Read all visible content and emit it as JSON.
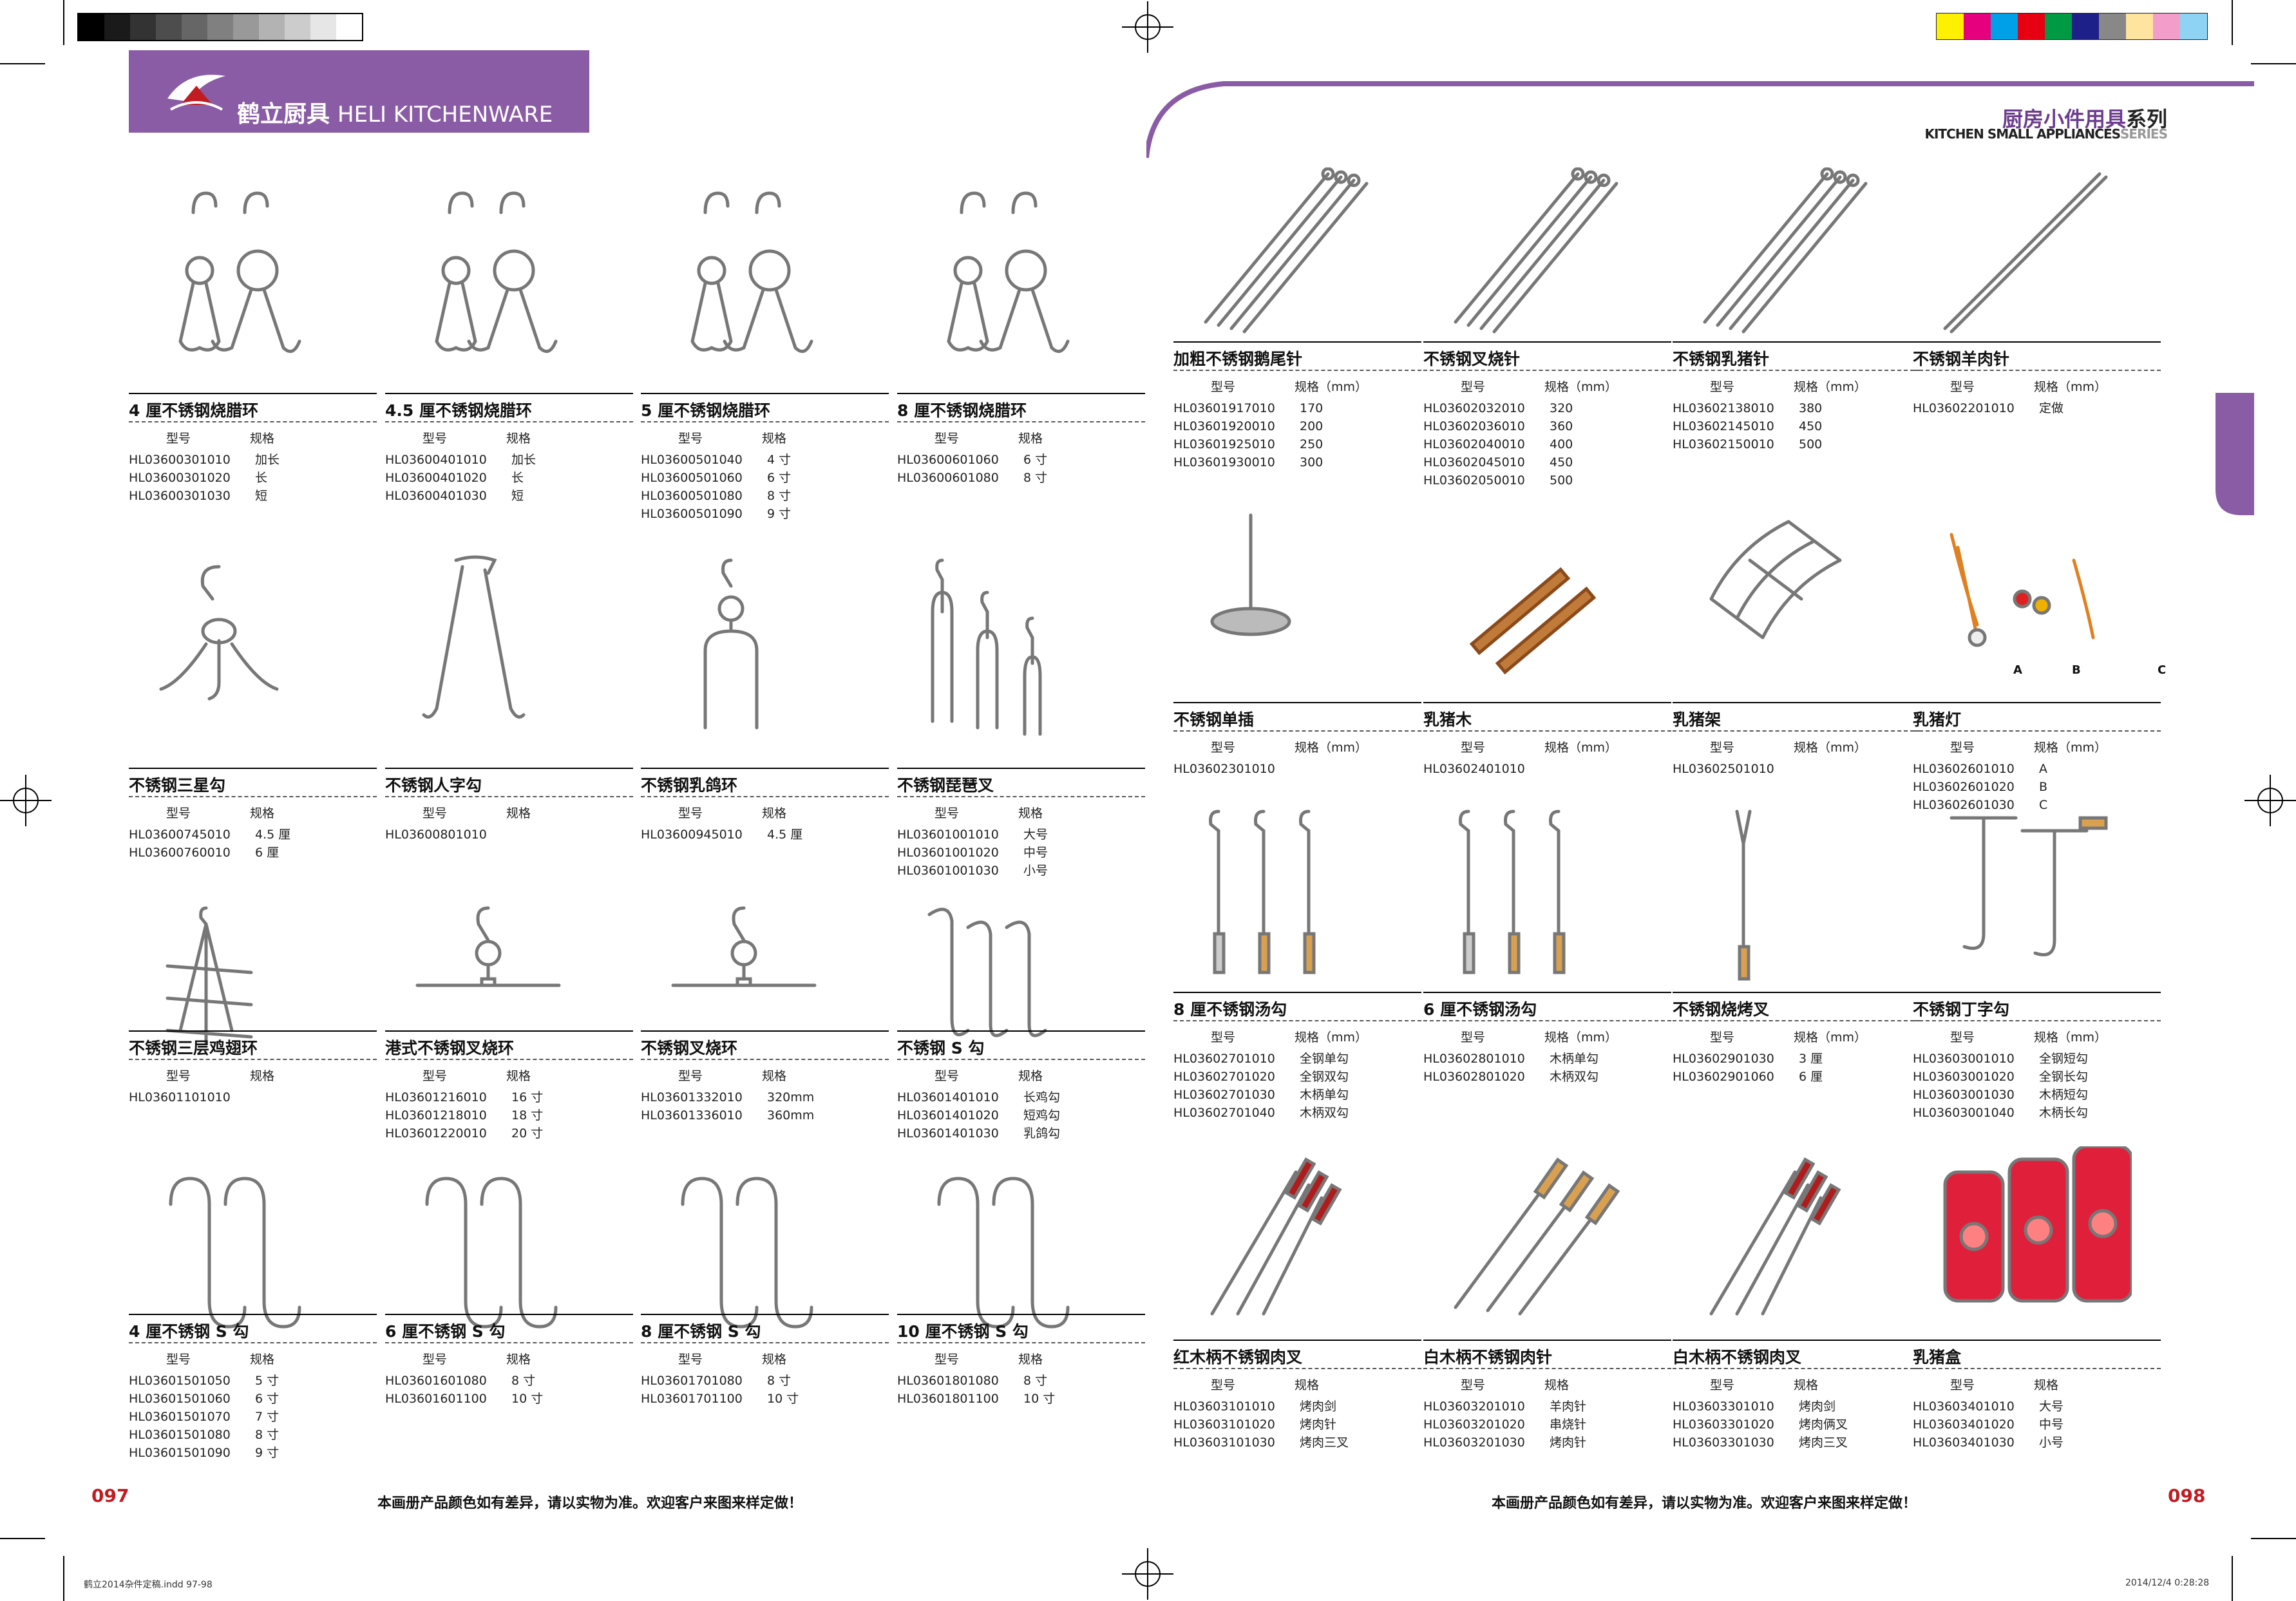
{
  "brand": {
    "name_cn": "鹤立厨具",
    "name_en": "HELI KITCHENWARE"
  },
  "series": {
    "title_cn_main": "厨房小件用具",
    "title_cn_suffix": "系列",
    "title_en_main": "KITCHEN SMALL APPLIANCES",
    "title_en_suffix": "SERIES"
  },
  "colors": {
    "accent": "#8a5ca6",
    "page_number": "#c01c22"
  },
  "table_headers": {
    "model": "型号",
    "spec": "规格",
    "spec_mm": "规格（mm）"
  },
  "pages": {
    "left_number": "097",
    "right_number": "098"
  },
  "notice": "本画册产品颜色如有差异，请以实物为准。欢迎客户来图来样定做！",
  "footer": {
    "file": "鹤立2014杂件定稿.indd 97-98",
    "timestamp": "2014/12/4 0:28:28"
  },
  "lamp_labels": [
    "A",
    "B",
    "C"
  ],
  "left_products": [
    {
      "name": "4 厘不锈钢烧腊环",
      "icon": "double-hook-ring-icon",
      "rows": [
        [
          "HL03600301010",
          "加长"
        ],
        [
          "HL03600301020",
          "长"
        ],
        [
          "HL03600301030",
          "短"
        ]
      ]
    },
    {
      "name": "4.5 厘不锈钢烧腊环",
      "icon": "double-hook-ring-icon",
      "rows": [
        [
          "HL03600401010",
          "加长"
        ],
        [
          "HL03600401020",
          "长"
        ],
        [
          "HL03600401030",
          "短"
        ]
      ]
    },
    {
      "name": "5 厘不锈钢烧腊环",
      "icon": "double-hook-ring-icon",
      "rows": [
        [
          "HL03600501040",
          "4 寸"
        ],
        [
          "HL03600501060",
          "6 寸"
        ],
        [
          "HL03600501080",
          "8 寸"
        ],
        [
          "HL03600501090",
          "9 寸"
        ]
      ]
    },
    {
      "name": "8 厘不锈钢烧腊环",
      "icon": "double-hook-ring-icon",
      "rows": [
        [
          "HL03600601060",
          "6 寸"
        ],
        [
          "HL03600601080",
          "8 寸"
        ]
      ]
    },
    {
      "name": "不锈钢三星勾",
      "icon": "three-prong-hook-icon",
      "rows": [
        [
          "HL03600745010",
          "4.5 厘"
        ],
        [
          "HL03600760010",
          "6 厘"
        ]
      ]
    },
    {
      "name": "不锈钢人字勾",
      "icon": "tong-hook-icon",
      "rows": [
        [
          "HL03600801010",
          ""
        ]
      ]
    },
    {
      "name": "不锈钢乳鸽环",
      "icon": "pigeon-fork-icon",
      "rows": [
        [
          "HL03600945010",
          "4.5 厘"
        ]
      ]
    },
    {
      "name": "不锈钢琵琶叉",
      "icon": "pipa-fork-icon",
      "rows": [
        [
          "HL03601001010",
          "大号"
        ],
        [
          "HL03601001020",
          "中号"
        ],
        [
          "HL03601001030",
          "小号"
        ]
      ]
    },
    {
      "name": "不锈钢三层鸡翅环",
      "icon": "wing-rack-icon",
      "rows": [
        [
          "HL03601101010",
          ""
        ]
      ]
    },
    {
      "name": "港式不锈钢叉烧环",
      "icon": "hanging-bar-hook-icon",
      "rows": [
        [
          "HL03601216010",
          "16 寸"
        ],
        [
          "HL03601218010",
          "18 寸"
        ],
        [
          "HL03601220010",
          "20 寸"
        ]
      ]
    },
    {
      "name": "不锈钢叉烧环",
      "icon": "hanging-bar-hook-icon",
      "rows": [
        [
          "HL03601332010",
          "320mm"
        ],
        [
          "HL03601336010",
          "360mm"
        ]
      ]
    },
    {
      "name": "不锈钢 S 勾",
      "icon": "s-hook-set-icon",
      "rows": [
        [
          "HL03601401010",
          "长鸡勾"
        ],
        [
          "HL03601401020",
          "短鸡勾"
        ],
        [
          "HL03601401030",
          "乳鸽勾"
        ]
      ]
    },
    {
      "name": "4 厘不锈钢 S 勾",
      "icon": "s-hook-icon",
      "rows": [
        [
          "HL03601501050",
          "5 寸"
        ],
        [
          "HL03601501060",
          "6 寸"
        ],
        [
          "HL03601501070",
          "7 寸"
        ],
        [
          "HL03601501080",
          "8 寸"
        ],
        [
          "HL03601501090",
          "9 寸"
        ]
      ]
    },
    {
      "name": "6 厘不锈钢 S 勾",
      "icon": "s-hook-icon",
      "rows": [
        [
          "HL03601601080",
          "8 寸"
        ],
        [
          "HL03601601100",
          "10 寸"
        ]
      ]
    },
    {
      "name": "8 厘不锈钢 S 勾",
      "icon": "s-hook-icon",
      "rows": [
        [
          "HL03601701080",
          "8 寸"
        ],
        [
          "HL03601701100",
          "10 寸"
        ]
      ]
    },
    {
      "name": "10 厘不锈钢 S 勾",
      "icon": "s-hook-icon",
      "rows": [
        [
          "HL03601801080",
          "8 寸"
        ],
        [
          "HL03601801100",
          "10 寸"
        ]
      ]
    }
  ],
  "right_products": [
    {
      "name": "加粗不锈钢鹅尾针",
      "icon": "skewer-set-icon",
      "rows": [
        [
          "HL03601917010",
          "170"
        ],
        [
          "HL03601920010",
          "200"
        ],
        [
          "HL03601925010",
          "250"
        ],
        [
          "HL03601930010",
          "300"
        ]
      ]
    },
    {
      "name": "不锈钢叉烧针",
      "icon": "skewer-set-icon",
      "rows": [
        [
          "HL03602032010",
          "320"
        ],
        [
          "HL03602036010",
          "360"
        ],
        [
          "HL03602040010",
          "400"
        ],
        [
          "HL03602045010",
          "450"
        ],
        [
          "HL03602050010",
          "500"
        ]
      ]
    },
    {
      "name": "不锈钢乳猪针",
      "icon": "skewer-set-icon",
      "rows": [
        [
          "HL03602138010",
          "380"
        ],
        [
          "HL03602145010",
          "450"
        ],
        [
          "HL03602150010",
          "500"
        ]
      ]
    },
    {
      "name": "不锈钢羊肉针",
      "icon": "long-skewer-icon",
      "rows": [
        [
          "HL03602201010",
          "定做"
        ]
      ]
    },
    {
      "name": "不锈钢单插",
      "icon": "spike-stand-icon",
      "rows": [
        [
          "HL03602301010",
          ""
        ]
      ]
    },
    {
      "name": "乳猪木",
      "icon": "wood-stick-icon",
      "rows": [
        [
          "HL03602401010",
          ""
        ]
      ]
    },
    {
      "name": "乳猪架",
      "icon": "wire-cage-icon",
      "rows": [
        [
          "HL03602501010",
          ""
        ]
      ]
    },
    {
      "name": "乳猪灯",
      "icon": "wire-lamp-icon",
      "rows": [
        [
          "HL03602601010",
          "A"
        ],
        [
          "HL03602601020",
          "B"
        ],
        [
          "HL03602601030",
          "C"
        ]
      ]
    },
    {
      "name": "8 厘不锈钢汤勾",
      "icon": "soup-hook-icon",
      "rows": [
        [
          "HL03602701010",
          "全钢单勾"
        ],
        [
          "HL03602701020",
          "全钢双勾"
        ],
        [
          "HL03602701030",
          "木柄单勾"
        ],
        [
          "HL03602701040",
          "木柄双勾"
        ]
      ]
    },
    {
      "name": "6 厘不锈钢汤勾",
      "icon": "soup-hook-icon",
      "rows": [
        [
          "HL03602801010",
          "木柄单勾"
        ],
        [
          "HL03602801020",
          "木柄双勾"
        ]
      ]
    },
    {
      "name": "不锈钢烧烤叉",
      "icon": "bbq-fork-icon",
      "rows": [
        [
          "HL03602901030",
          "3 厘"
        ],
        [
          "HL03602901060",
          "6 厘"
        ]
      ]
    },
    {
      "name": "不锈钢丁字勾",
      "icon": "t-hook-icon",
      "rows": [
        [
          "HL03603001010",
          "全钢短勾"
        ],
        [
          "HL03603001020",
          "全钢长勾"
        ],
        [
          "HL03603001030",
          "木柄短勾"
        ],
        [
          "HL03603001040",
          "木柄长勾"
        ]
      ]
    },
    {
      "name": "红木柄不锈钢肉叉",
      "icon": "meat-fork-icon",
      "rows": [
        [
          "HL03603101010",
          "烤肉剑"
        ],
        [
          "HL03603101020",
          "烤肉针"
        ],
        [
          "HL03603101030",
          "烤肉三叉"
        ]
      ]
    },
    {
      "name": "白木柄不锈钢肉针",
      "icon": "meat-skewer-icon",
      "rows": [
        [
          "HL03603201010",
          "羊肉针"
        ],
        [
          "HL03603201020",
          "串烧针"
        ],
        [
          "HL03603201030",
          "烤肉针"
        ]
      ]
    },
    {
      "name": "白木柄不锈钢肉叉",
      "icon": "meat-fork-icon",
      "rows": [
        [
          "HL03603301010",
          "烤肉剑"
        ],
        [
          "HL03603301020",
          "烤肉俩叉"
        ],
        [
          "HL03603301030",
          "烤肉三叉"
        ]
      ]
    },
    {
      "name": "乳猪盒",
      "icon": "lamp-box-icon",
      "rows": [
        [
          "HL03603401010",
          "大号"
        ],
        [
          "HL03603401020",
          "中号"
        ],
        [
          "HL03603401030",
          "小号"
        ]
      ]
    }
  ]
}
